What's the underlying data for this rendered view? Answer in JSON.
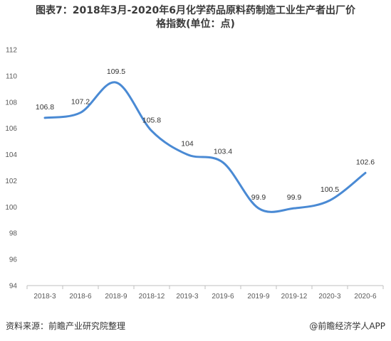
{
  "chart_data": {
    "type": "line",
    "title": "图表7：2018年3月-2020年6月化学药品原料药制造工业生产者出厂价\n格指数(单位：点)",
    "xlabel": "",
    "ylabel": "",
    "categories": [
      "2018-3",
      "2018-6",
      "2018-9",
      "2018-12",
      "2019-3",
      "2019-6",
      "2019-9",
      "2019-12",
      "2020-3",
      "2020-6"
    ],
    "values": [
      106.8,
      107.2,
      109.5,
      105.8,
      104,
      103.4,
      99.9,
      99.9,
      100.5,
      102.6
    ],
    "data_labels": [
      "106.8",
      "107.2",
      "109.5",
      "105.8",
      "104",
      "103.4",
      "99.9",
      "99.9",
      "100.5",
      "102.6"
    ],
    "ylim": [
      94,
      112
    ],
    "yticks": [
      "94",
      "96",
      "98",
      "100",
      "102",
      "104",
      "106",
      "108",
      "110",
      "112"
    ],
    "grid": false,
    "legend": "none",
    "colors": {
      "line": "#4a8ad4",
      "axis": "#bfbfbf",
      "tick_text": "#595959"
    }
  },
  "footer": {
    "source": "资料来源：前瞻产业研究院整理",
    "brand": "@前瞻经济学人APP"
  }
}
